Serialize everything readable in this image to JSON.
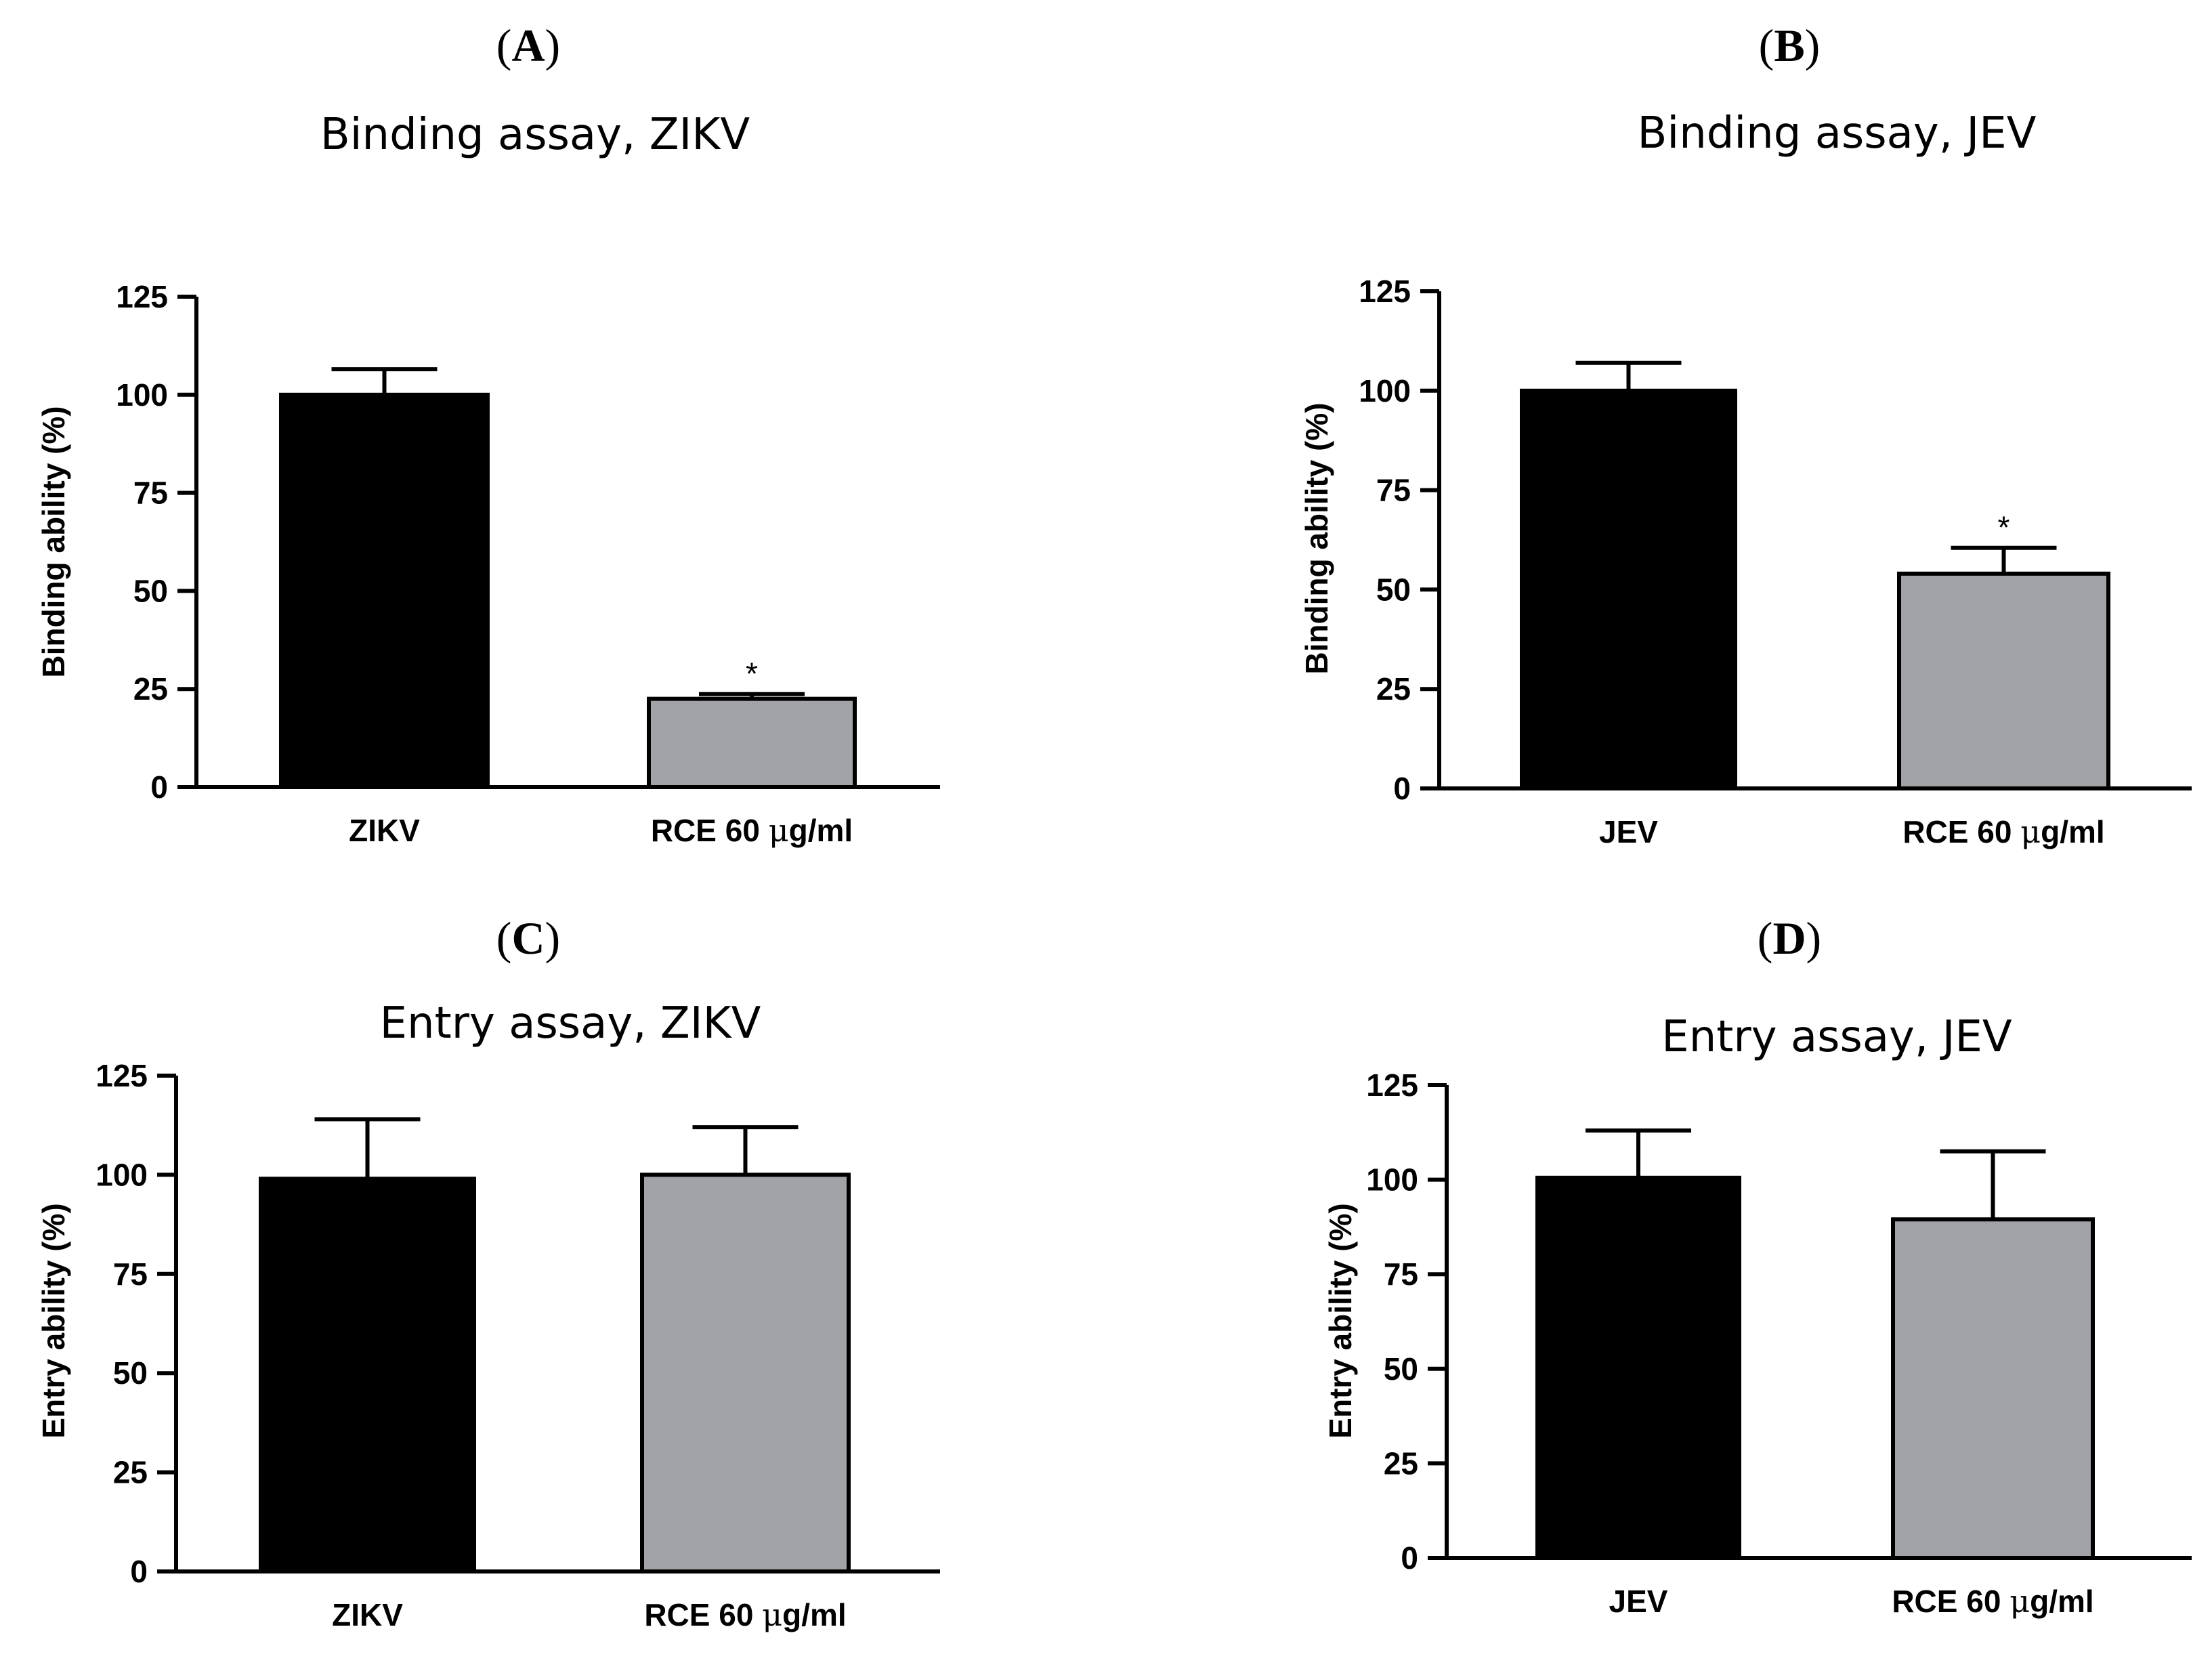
{
  "colors": {
    "control": "#000000",
    "treatment": "#a2a3a6",
    "axis": "#000000"
  },
  "chart_data": [
    {
      "panel": "A",
      "type": "bar",
      "title": "Binding assay, ZIKV",
      "ylabel": "Binding ability (%)",
      "xlabel": "",
      "categories": [
        {
          "pre": "ZIKV",
          "mu": "",
          "post": ""
        },
        {
          "pre": "RCE 60 ",
          "mu": "μ",
          "post": "g/ml"
        }
      ],
      "values": [
        100,
        22.5
      ],
      "errors": [
        6.5,
        1.2
      ],
      "significance": [
        "",
        "*"
      ],
      "ylim": [
        0,
        125
      ],
      "yticks": [
        "0",
        "25",
        "50",
        "75",
        "100",
        "125"
      ],
      "tickvalues": [
        0,
        25,
        50,
        75,
        100,
        125
      ]
    },
    {
      "panel": "B",
      "type": "bar",
      "title": "Binding assay, JEV",
      "ylabel": "Binding ability (%)",
      "xlabel": "",
      "categories": [
        {
          "pre": "JEV",
          "mu": "",
          "post": ""
        },
        {
          "pre": "RCE 60 ",
          "mu": "μ",
          "post": "g/ml"
        }
      ],
      "values": [
        100,
        54
      ],
      "errors": [
        7,
        6.5
      ],
      "significance": [
        "",
        "*"
      ],
      "ylim": [
        0,
        125
      ],
      "yticks": [
        "0",
        "25",
        "50",
        "75",
        "100",
        "125"
      ],
      "tickvalues": [
        0,
        25,
        50,
        75,
        100,
        125
      ]
    },
    {
      "panel": "C",
      "type": "bar",
      "title": "Entry assay, ZIKV",
      "ylabel": "Entry ability (%)",
      "xlabel": "",
      "categories": [
        {
          "pre": "ZIKV",
          "mu": "",
          "post": ""
        },
        {
          "pre": "RCE 60 ",
          "mu": "μ",
          "post": "g/ml"
        }
      ],
      "values": [
        99,
        100
      ],
      "errors": [
        15,
        12
      ],
      "significance": [
        "",
        ""
      ],
      "ylim": [
        0,
        125
      ],
      "yticks": [
        "0",
        "25",
        "50",
        "75",
        "100",
        "125"
      ],
      "tickvalues": [
        0,
        25,
        50,
        75,
        100,
        125
      ]
    },
    {
      "panel": "D",
      "type": "bar",
      "title": "Entry assay, JEV",
      "ylabel": "Entry ability (%)",
      "xlabel": "",
      "categories": [
        {
          "pre": "JEV",
          "mu": "",
          "post": ""
        },
        {
          "pre": "RCE 60 ",
          "mu": "μ",
          "post": "g/ml"
        }
      ],
      "values": [
        100.5,
        89.5
      ],
      "errors": [
        12.5,
        18
      ],
      "significance": [
        "",
        ""
      ],
      "ylim": [
        0,
        125
      ],
      "yticks": [
        "0",
        "25",
        "50",
        "75",
        "100",
        "125"
      ],
      "tickvalues": [
        0,
        25,
        50,
        75,
        100,
        125
      ]
    }
  ]
}
